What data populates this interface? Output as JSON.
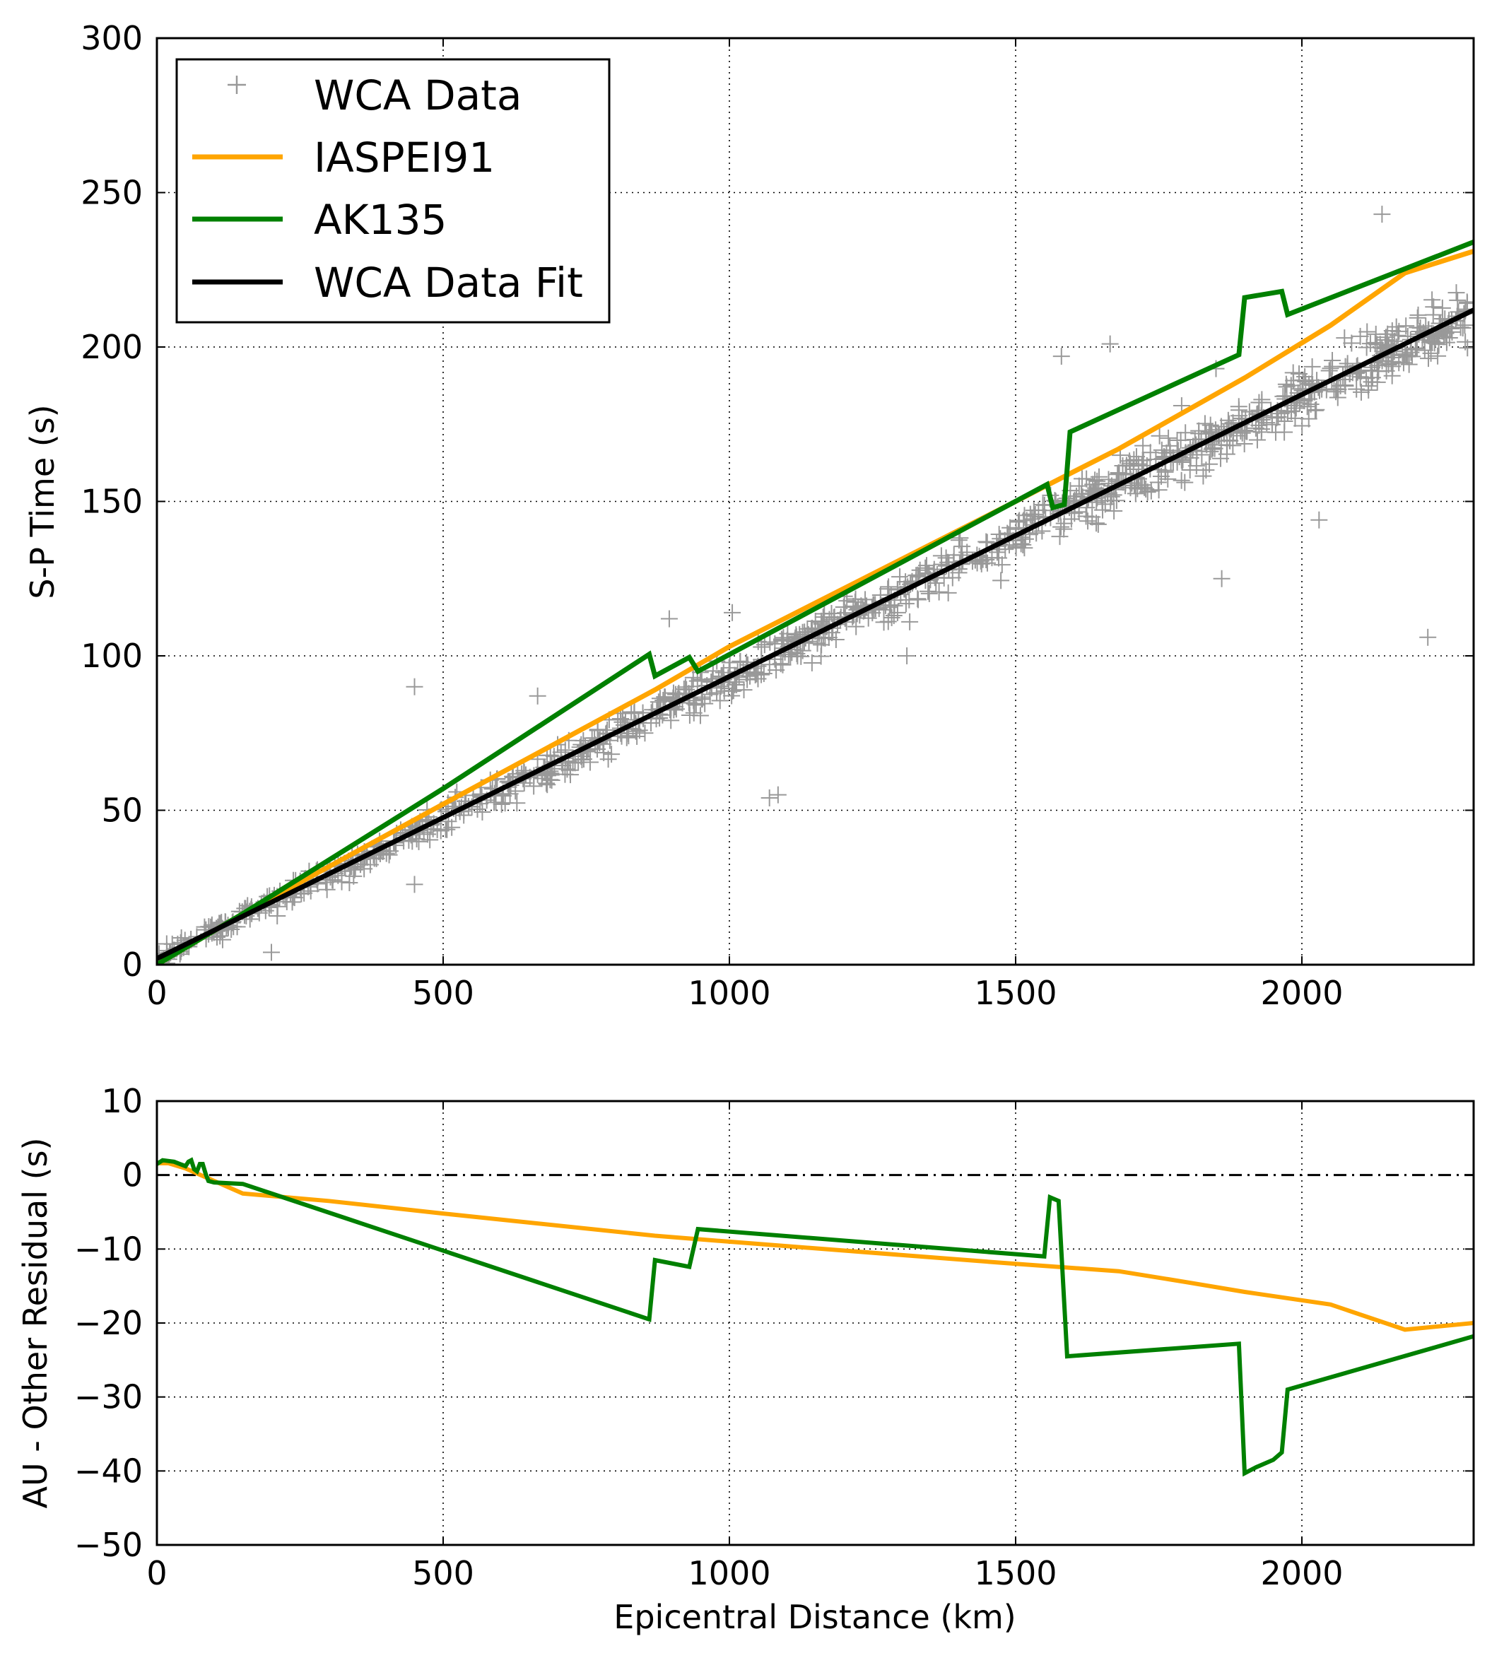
{
  "chart_data": [
    {
      "type": "scatter",
      "xlabel": "",
      "ylabel": "S-P Time (s)",
      "xlim": [
        0,
        2300
      ],
      "ylim": [
        0,
        300
      ],
      "x_ticks": [
        0,
        500,
        1000,
        1500,
        2000
      ],
      "y_ticks": [
        0,
        50,
        100,
        150,
        200,
        250,
        300
      ],
      "grid": true,
      "legend_position": "top-left",
      "legend": [
        "WCA Data",
        "IASPEI91",
        "AK135",
        "WCA Data Fit"
      ],
      "colors": {
        "scatter": "#999999",
        "iaspei91": "#ffa500",
        "ak135": "#008000",
        "fit": "#000000"
      },
      "scatter_trend": {
        "slope": 0.0911,
        "intercept": 2.0,
        "spread_s": 3.0,
        "approx_count": 1200
      },
      "scatter_outliers": [
        {
          "x": 2140,
          "y": 243
        },
        {
          "x": 450,
          "y": 90
        },
        {
          "x": 1860,
          "y": 125
        },
        {
          "x": 2220,
          "y": 106
        },
        {
          "x": 2030,
          "y": 144
        },
        {
          "x": 1070,
          "y": 54
        },
        {
          "x": 1085,
          "y": 55
        },
        {
          "x": 1580,
          "y": 197
        },
        {
          "x": 1665,
          "y": 201
        },
        {
          "x": 895,
          "y": 112
        },
        {
          "x": 1005,
          "y": 114
        },
        {
          "x": 200,
          "y": 4
        },
        {
          "x": 450,
          "y": 26
        },
        {
          "x": 665,
          "y": 87
        },
        {
          "x": 1310,
          "y": 100
        },
        {
          "x": 2230,
          "y": 213
        },
        {
          "x": 1790,
          "y": 181
        },
        {
          "x": 1850,
          "y": 193
        },
        {
          "x": 1820,
          "y": 172
        },
        {
          "x": 1930,
          "y": 182
        }
      ],
      "series": [
        {
          "name": "IASPEI91",
          "x": [
            0,
            150,
            500,
            870,
            1000,
            1500,
            1600,
            1680,
            1900,
            2050,
            2180,
            2300
          ],
          "y": [
            0,
            16.5,
            52,
            89,
            103,
            150,
            159.5,
            167,
            190,
            207,
            224,
            231
          ]
        },
        {
          "name": "AK135",
          "x": [
            0,
            150,
            500,
            860,
            870,
            930,
            945,
            1555,
            1565,
            1585,
            1595,
            1890,
            1900,
            1965,
            1975,
            2300
          ],
          "y": [
            0,
            16.5,
            57,
            100.5,
            93.5,
            99.5,
            95,
            155.5,
            148,
            149,
            172.5,
            197.5,
            216,
            218,
            210.5,
            234
          ]
        },
        {
          "name": "WCA Data Fit",
          "x": [
            0,
            2300
          ],
          "y": [
            2,
            212
          ]
        }
      ]
    },
    {
      "type": "line",
      "xlabel": "Epicentral Distance (km)",
      "ylabel": "AU - Other Residual (s)",
      "xlim": [
        0,
        2300
      ],
      "ylim": [
        -50,
        10
      ],
      "x_ticks": [
        0,
        500,
        1000,
        1500,
        2000
      ],
      "y_ticks": [
        10,
        0,
        -10,
        -20,
        -30,
        -40,
        -50
      ],
      "y_tick_labels": [
        "10",
        "0",
        "−10",
        "−20",
        "−30",
        "−40",
        "−50"
      ],
      "grid": true,
      "reference_line": {
        "y": 0,
        "style": "dash-dot"
      },
      "series": [
        {
          "name": "IASPEI91",
          "x": [
            0,
            20,
            50,
            100,
            150,
            300,
            500,
            870,
            1000,
            1500,
            1680,
            1800,
            1900,
            2050,
            2180,
            2300
          ],
          "y": [
            1.6,
            1.6,
            0.9,
            -0.8,
            -2.5,
            -3.5,
            -5.2,
            -8.2,
            -9.0,
            -12.0,
            -13.0,
            -14.5,
            -15.8,
            -17.5,
            -20.9,
            -20.0
          ]
        },
        {
          "name": "AK135",
          "x": [
            0,
            10,
            30,
            50,
            55,
            60,
            65,
            70,
            75,
            80,
            85,
            90,
            100,
            150,
            860,
            870,
            930,
            945,
            1550,
            1560,
            1575,
            1590,
            1890,
            1900,
            1920,
            1950,
            1965,
            1975,
            2300
          ],
          "y": [
            1.5,
            2.0,
            1.8,
            1.2,
            1.8,
            2.0,
            0.8,
            0.5,
            1.5,
            1.5,
            0.2,
            -0.8,
            -1.0,
            -1.2,
            -19.5,
            -11.5,
            -12.4,
            -7.3,
            -11.0,
            -3.0,
            -3.5,
            -24.5,
            -22.8,
            -40.3,
            -39.5,
            -38.5,
            -37.5,
            -29.0,
            -21.8
          ]
        }
      ]
    }
  ]
}
